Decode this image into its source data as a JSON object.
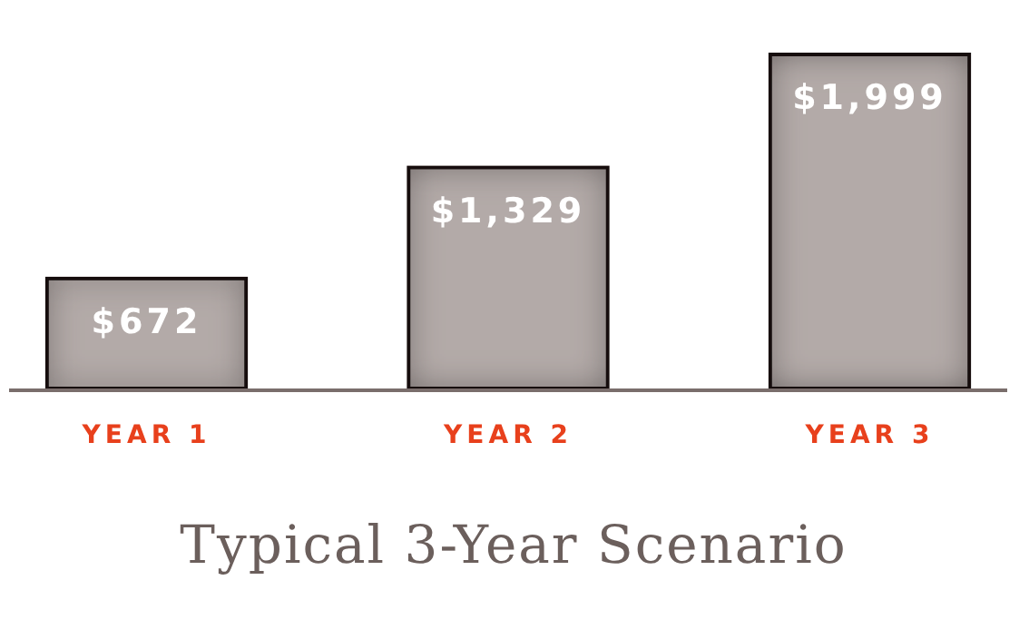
{
  "chart_data": {
    "type": "bar",
    "title": "Typical 3-Year Scenario",
    "categories": [
      "YEAR 1",
      "YEAR 2",
      "YEAR 3"
    ],
    "values": [
      672,
      1329,
      1999
    ],
    "value_labels": [
      "$672",
      "$1,329",
      "$1,999"
    ],
    "color": "#b3aaa8"
  }
}
